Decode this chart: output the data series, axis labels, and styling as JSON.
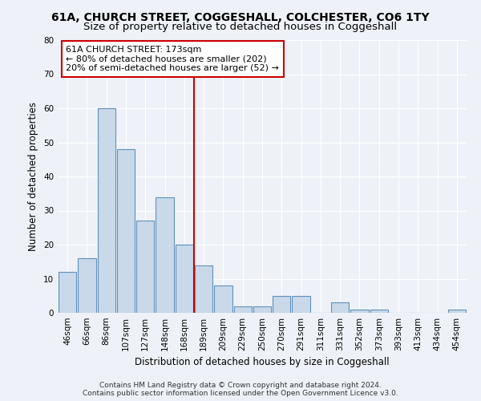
{
  "title": "61A, CHURCH STREET, COGGESHALL, COLCHESTER, CO6 1TY",
  "subtitle": "Size of property relative to detached houses in Coggeshall",
  "xlabel": "Distribution of detached houses by size in Coggeshall",
  "ylabel": "Number of detached properties",
  "bar_categories": [
    "46sqm",
    "66sqm",
    "86sqm",
    "107sqm",
    "127sqm",
    "148sqm",
    "168sqm",
    "189sqm",
    "209sqm",
    "229sqm",
    "250sqm",
    "270sqm",
    "291sqm",
    "311sqm",
    "331sqm",
    "352sqm",
    "373sqm",
    "393sqm",
    "413sqm",
    "434sqm",
    "454sqm"
  ],
  "bar_values": [
    12,
    16,
    60,
    48,
    27,
    34,
    20,
    14,
    8,
    2,
    2,
    5,
    5,
    0,
    3,
    1,
    1,
    0,
    0,
    0,
    1
  ],
  "bar_color": "#c9d9ea",
  "bar_edge_color": "#6090b8",
  "vline_color": "#cc0000",
  "ylim": [
    0,
    80
  ],
  "yticks": [
    0,
    10,
    20,
    30,
    40,
    50,
    60,
    70,
    80
  ],
  "annotation_text": "61A CHURCH STREET: 173sqm\n← 80% of detached houses are smaller (202)\n20% of semi-detached houses are larger (52) →",
  "annotation_box_color": "#ffffff",
  "annotation_box_edge": "#cc0000",
  "footer_line1": "Contains HM Land Registry data © Crown copyright and database right 2024.",
  "footer_line2": "Contains public sector information licensed under the Open Government Licence v3.0.",
  "background_color": "#eef2f8",
  "grid_color": "#ffffff",
  "title_fontsize": 10,
  "subtitle_fontsize": 9.5,
  "axis_label_fontsize": 8.5,
  "tick_fontsize": 7.5,
  "annotation_fontsize": 8,
  "footer_fontsize": 6.5
}
